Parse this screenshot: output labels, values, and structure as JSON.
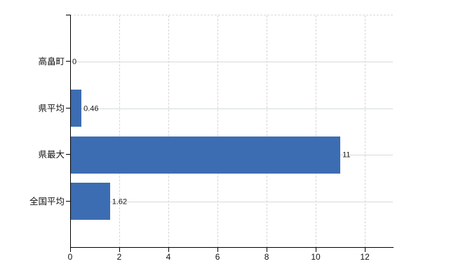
{
  "chart_data": {
    "type": "bar",
    "orientation": "horizontal",
    "title": "",
    "xlabel": "",
    "ylabel": "",
    "categories": [
      "高畠町",
      "県平均",
      "県最大",
      "全国平均"
    ],
    "values": [
      0,
      0.46,
      11,
      1.62
    ],
    "value_labels": [
      "0",
      "0.46",
      "11",
      "1.62"
    ],
    "x_ticks": [
      0,
      2,
      4,
      6,
      8,
      10,
      12
    ],
    "x_tick_labels": [
      "0",
      "2",
      "4",
      "6",
      "8",
      "10",
      "12"
    ],
    "xlim": [
      0,
      13.14
    ],
    "grid": true,
    "legend": false,
    "bar_color": "#3c6db3",
    "grid_color": "#d9d9d9",
    "axis_color": "#000000",
    "background_color": "#ffffff"
  }
}
